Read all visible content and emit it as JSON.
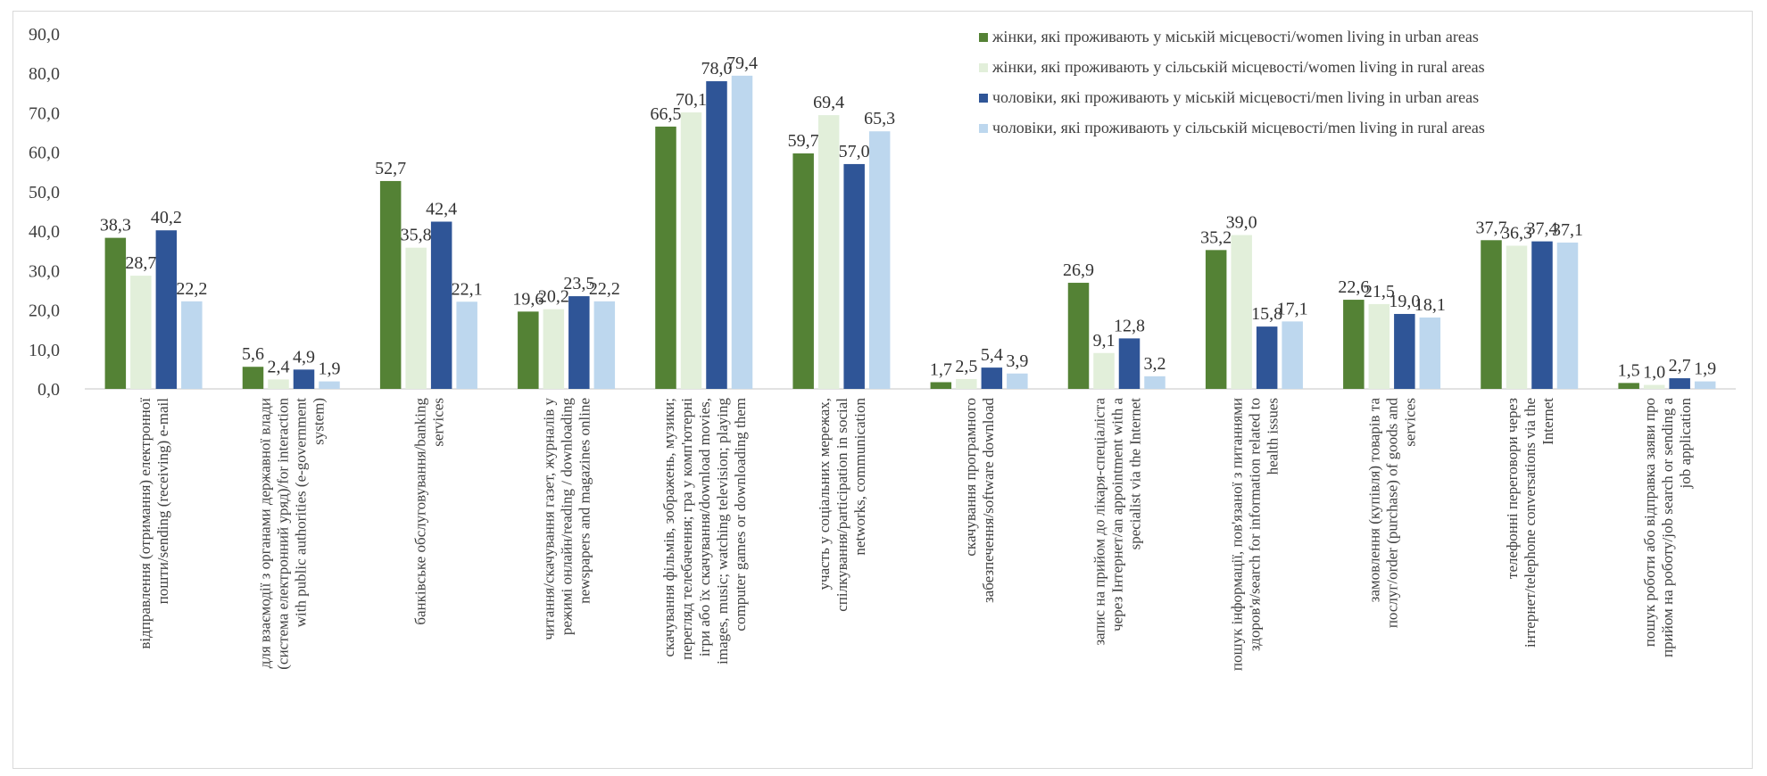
{
  "chart_data": {
    "type": "bar",
    "ylim": [
      0,
      90
    ],
    "yticks": [
      "0,0",
      "10,0",
      "20,0",
      "30,0",
      "40,0",
      "50,0",
      "60,0",
      "70,0",
      "80,0",
      "90,0"
    ],
    "grid": false,
    "legend_position": "top-right",
    "categories": [
      [
        "відправлення (отримання) електронної",
        "пошти/sending (receiving) e-mail"
      ],
      [
        "для взаємодії з органами державної влади",
        "(система електронний уряд)/for interaction",
        "with public authorities (e-government",
        "system)"
      ],
      [
        "банківське обслуговування/banking",
        "services"
      ],
      [
        "читання/скачування газет, журналів у",
        "режимі онлайн/reading / downloading",
        "newspapers and magazines online"
      ],
      [
        "скачування фільмів, зображень, музики;",
        "перегляд телебачення; гра у комп'ютерні",
        "ігри або їх скачування/download movies,",
        "images, music; watching television; playing",
        "computer games or downloading them"
      ],
      [
        "участь у соціальних мережах,",
        "спілкування/participation in social",
        "networks, communication"
      ],
      [
        "скачування програмного",
        "забезпечення/software download"
      ],
      [
        "запис на прийом до лікаря-спеціаліста",
        "через Інтернет/an appointment with a",
        "specialist via the Internet"
      ],
      [
        "пошук інформації, пов'язаної з питаннями",
        "здоров'я/search for information related to",
        "health issues"
      ],
      [
        "замовлення (купівля) товарів та",
        "послуг/order (purchase) of goods and",
        "services"
      ],
      [
        "телефонні переговори через",
        "інтернет/telephone conversations via the",
        "Internet"
      ],
      [
        "пошук роботи або відправка заяви про",
        "прийом на роботу/job search or sending a",
        "job application"
      ]
    ],
    "series": [
      {
        "name": "жінки, які проживають у міській місцевості/women living in urban areas",
        "color": "#548235",
        "values": [
          38.3,
          5.6,
          52.7,
          19.6,
          66.5,
          59.7,
          1.7,
          26.9,
          35.2,
          22.6,
          37.7,
          1.5
        ],
        "labels": [
          "38,3",
          "5,6",
          "52,7",
          "19,6",
          "66,5",
          "59,7",
          "1,7",
          "26,9",
          "35,2",
          "22,6",
          "37,7",
          "1,5"
        ]
      },
      {
        "name": "жінки, які проживають у сільській місцевості/women living in rural areas",
        "color": "#e2efda",
        "values": [
          28.7,
          2.4,
          35.8,
          20.2,
          70.1,
          69.4,
          2.5,
          9.1,
          39.0,
          21.5,
          36.3,
          1.0
        ],
        "labels": [
          "28,7",
          "2,4",
          "35,8",
          "20,2",
          "70,1",
          "69,4",
          "2,5",
          "9,1",
          "39,0",
          "21,5",
          "36,3",
          "1,0"
        ]
      },
      {
        "name": "чоловіки, які проживають у міській місцевості/men living in urban areas",
        "color": "#2f5597",
        "values": [
          40.2,
          4.9,
          42.4,
          23.5,
          78.0,
          57.0,
          5.4,
          12.8,
          15.8,
          19.0,
          37.4,
          2.7
        ],
        "labels": [
          "40,2",
          "4,9",
          "42,4",
          "23,5",
          "78,0",
          "57,0",
          "5,4",
          "12,8",
          "15,8",
          "19,0",
          "37,4",
          "2,7"
        ]
      },
      {
        "name": "чоловіки, які проживають у сільській місцевості/men living in rural areas",
        "color": "#bdd7ee",
        "values": [
          22.2,
          1.9,
          22.1,
          22.2,
          79.4,
          65.3,
          3.9,
          3.2,
          17.1,
          18.1,
          37.1,
          1.9
        ],
        "labels": [
          "22,2",
          "1,9",
          "22,1",
          "22,2",
          "79,4",
          "65,3",
          "3,9",
          "3,2",
          "17,1",
          "18,1",
          "37,1",
          "1,9"
        ]
      }
    ]
  }
}
